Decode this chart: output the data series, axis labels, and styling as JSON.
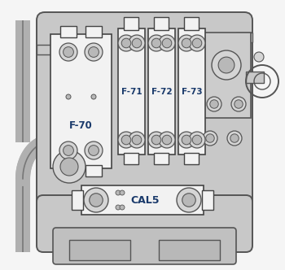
{
  "bg_color": "#f5f5f5",
  "main_plate_color": "#c8c8c8",
  "plate_outline": "#555555",
  "inner_plate_color": "#d8d8d8",
  "fuse_body_color": "#f2f2f2",
  "fuse_outline": "#444444",
  "fuse_label_color": "#1a3a6b",
  "nut_outer_color": "#d5d5d5",
  "nut_inner_color": "#b8b8b8",
  "nut_outline": "#555555",
  "label_F70": "F-70",
  "label_F71": "F-71",
  "label_F72": "F-72",
  "label_F73": "F-73",
  "label_CAL5": "CAL5",
  "cable_color": "#b0b0b0",
  "cable_outline": "#777777"
}
